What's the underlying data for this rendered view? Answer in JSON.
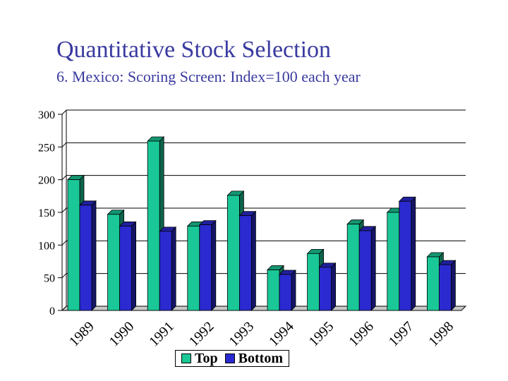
{
  "chart_data": {
    "type": "bar",
    "title": "Quantitative Stock Selection",
    "subtitle": "6. Mexico: Scoring Screen: Index=100 each year",
    "categories": [
      "1989",
      "1990",
      "1991",
      "1992",
      "1993",
      "1994",
      "1995",
      "1996",
      "1997",
      "1998"
    ],
    "series": [
      {
        "name": "Top",
        "values": [
          200,
          147,
          259,
          129,
          176,
          62,
          87,
          132,
          150,
          82
        ],
        "color": "#19c896"
      },
      {
        "name": "Bottom",
        "values": [
          161,
          129,
          121,
          131,
          145,
          55,
          66,
          122,
          167,
          70
        ],
        "color": "#2a2ad0"
      }
    ],
    "ylim": [
      0,
      300
    ],
    "yticks": [
      "0",
      "50",
      "100",
      "150",
      "200",
      "250",
      "300"
    ],
    "grid": true,
    "legend_position": "bottom"
  }
}
